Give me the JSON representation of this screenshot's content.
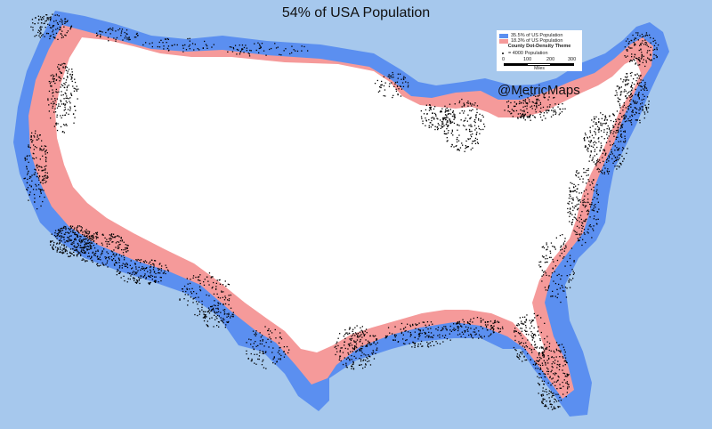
{
  "title": "54% of USA Population",
  "legend": {
    "items": [
      {
        "label": "35.5% of US Population",
        "color": "#5b8ff0"
      },
      {
        "label": "18.3% of US Population",
        "color": "#f59a9a"
      }
    ],
    "theme": "County Dot-Density Theme",
    "dot_label": "= 4000 Population",
    "scale_ticks": [
      "0",
      "100",
      "200",
      "300"
    ],
    "scale_unit": "Miles"
  },
  "credit": "@MetricMaps",
  "colors": {
    "ocean": "#a6c8ed",
    "interior": "#ffffff",
    "band_inner": "#f59a9a",
    "band_outer": "#5b8ff0",
    "dots": "#000000"
  }
}
